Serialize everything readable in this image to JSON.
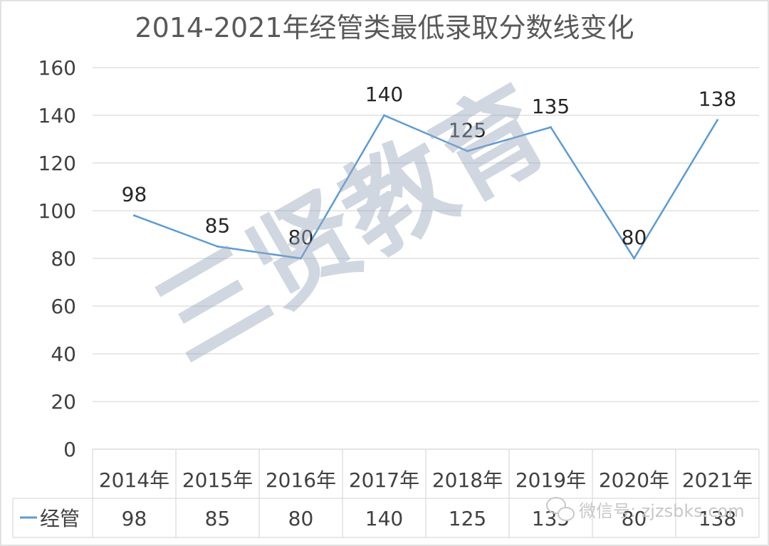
{
  "chart_data": {
    "type": "line",
    "title": "2014-2021年经管类最低录取分数线变化",
    "categories": [
      "2014年",
      "2015年",
      "2016年",
      "2017年",
      "2018年",
      "2019年",
      "2020年",
      "2021年"
    ],
    "series": [
      {
        "name": "经管",
        "values": [
          98,
          85,
          80,
          140,
          125,
          135,
          80,
          138
        ],
        "color": "#5b9bd5"
      }
    ],
    "ylim": [
      0,
      160
    ],
    "yticks": [
      "0",
      "20",
      "40",
      "60",
      "80",
      "100",
      "120",
      "140",
      "160"
    ],
    "grid": true,
    "legend": "bottom-left data table"
  },
  "watermark": "三贤教育",
  "social_badge": {
    "icon": "wechat-icon",
    "text": "微信号: zjzsbks.com"
  }
}
